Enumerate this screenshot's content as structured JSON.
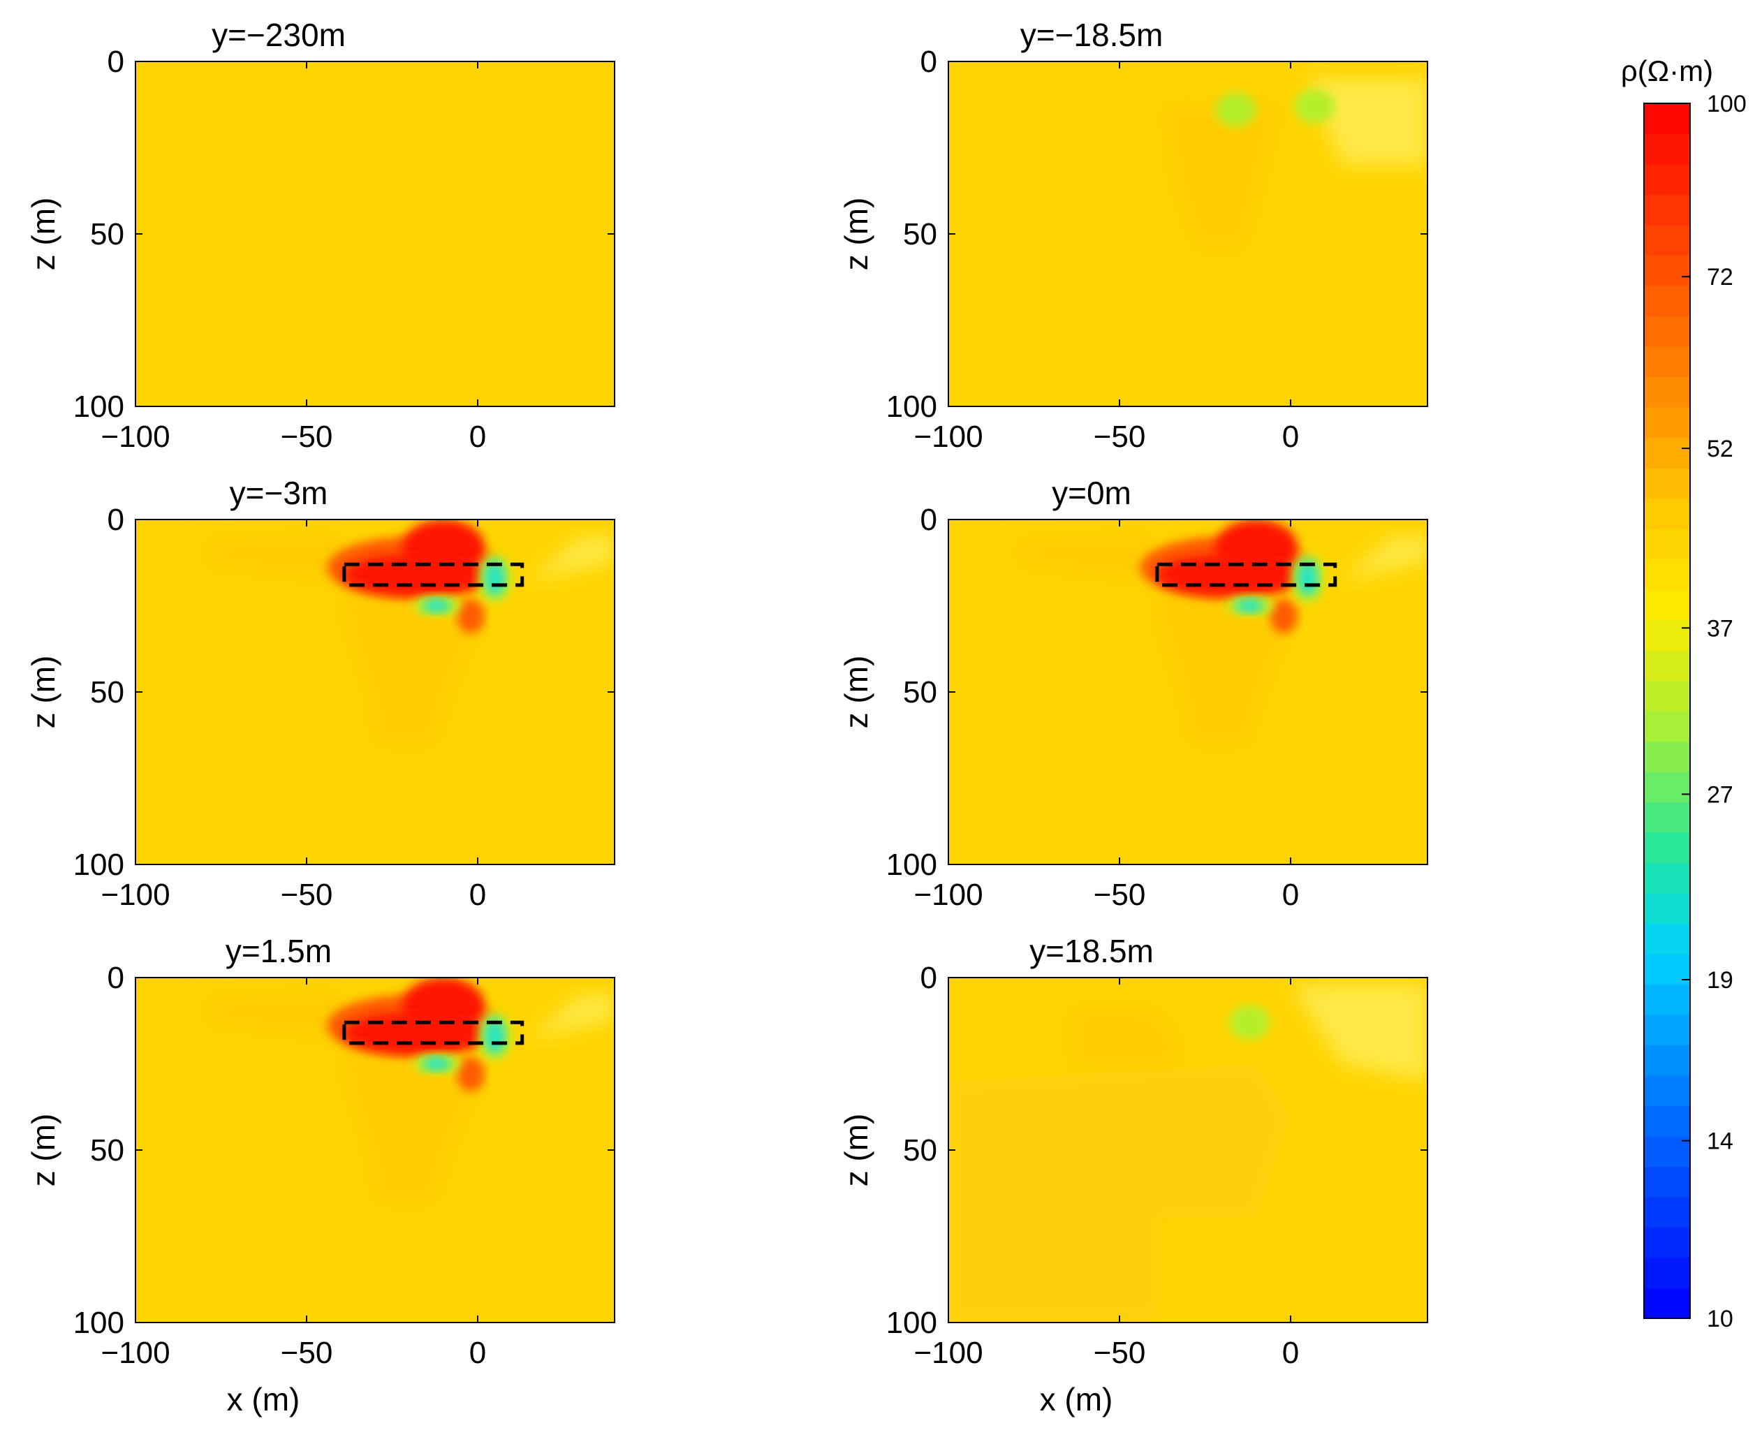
{
  "chart_data": {
    "type": "heatmap",
    "colorbar": {
      "title": "ρ(Ω·m)",
      "ticks": [
        100,
        72,
        52,
        37,
        27,
        19,
        14,
        10
      ],
      "range": [
        10,
        100
      ],
      "scale": "log"
    },
    "colors": {
      "background": "#ffd400",
      "deep_background": "#ffcc00",
      "high": "#ff1600",
      "mid_high": "#ff5a00",
      "low": "#29e3c0",
      "mid_low": "#b6ef2a"
    },
    "x_axis": {
      "label": "x (m)",
      "ticks": [
        -100,
        -50,
        0
      ],
      "range": [
        -100,
        40
      ]
    },
    "y_axis": {
      "label": "z (m)",
      "ticks": [
        0,
        50,
        100
      ],
      "range": [
        0,
        100
      ],
      "reversed": true
    },
    "panels": [
      {
        "title": "y=−230m",
        "anomaly": "none"
      },
      {
        "title": "y=−18.5m",
        "anomaly": "weak"
      },
      {
        "title": "y=−3m",
        "anomaly": "strong",
        "box": true
      },
      {
        "title": "y=0m",
        "anomaly": "strong",
        "box": true
      },
      {
        "title": "y=1.5m",
        "anomaly": "strong",
        "box": true
      },
      {
        "title": "y=18.5m",
        "anomaly": "faint"
      }
    ],
    "target_box": {
      "x": [
        -39,
        13
      ],
      "z": [
        13,
        19
      ]
    }
  }
}
